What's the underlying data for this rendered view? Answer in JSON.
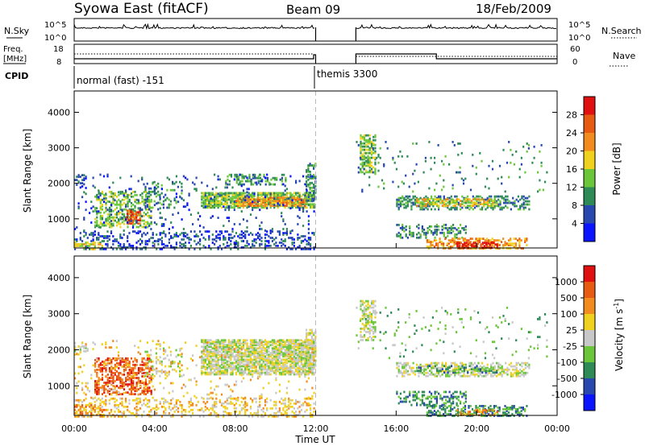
{
  "chart_data": {
    "type": "heatmap",
    "header": {
      "station": "Syowa East (fitACF)",
      "beam": "Beam 09",
      "date": "18/Feb/2009"
    },
    "top_panels": {
      "nsky_label": "N.Sky",
      "nsearch_label": "N.Search",
      "nsky_ticks": [
        "10^5",
        "10^0"
      ],
      "freq_label": "Freq.",
      "freq_unit": "[MHz]",
      "freq_ticks": [
        "18",
        "8"
      ],
      "nave_ticks": [
        "60",
        "0"
      ],
      "nave_label": "Nave",
      "cpid_label": "CPID",
      "modes": [
        {
          "label": "normal (fast) -151",
          "start_hour": 0,
          "end_hour": 12
        },
        {
          "label": "themis 3300",
          "start_hour": 12,
          "end_hour": 24
        }
      ],
      "data_gap_hours": [
        12,
        14
      ]
    },
    "x_axis": {
      "label": "Time UT",
      "range_hours": [
        0,
        24
      ],
      "ticks": [
        "00:00",
        "04:00",
        "08:00",
        "12:00",
        "16:00",
        "20:00",
        "00:00"
      ],
      "tick_hours": [
        0,
        4,
        8,
        12,
        16,
        20,
        24
      ]
    },
    "y_axis": {
      "label": "Slant Range [km]",
      "range_km": [
        180,
        4600
      ],
      "ticks": [
        1000,
        2000,
        3000,
        4000
      ],
      "tick_labels": [
        "1000",
        "2000",
        "3000",
        "4000"
      ]
    },
    "power": {
      "scale_label": "Power [dB]",
      "scale_ticks": [
        "28",
        "24",
        "20",
        "16",
        "12",
        "8",
        "4"
      ],
      "colors": [
        "#0a14ff",
        "#2848b0",
        "#2e8a56",
        "#6cc63a",
        "#f0d21e",
        "#f28c1e",
        "#e85a12",
        "#e01010"
      ],
      "regions": [
        {
          "t0": 0.0,
          "t1": 0.6,
          "r0": 1900,
          "r1": 2300,
          "level": 1,
          "density": 0.25
        },
        {
          "t0": 1.0,
          "t1": 3.8,
          "r0": 800,
          "r1": 1800,
          "level": 3,
          "density": 0.45
        },
        {
          "t0": 2.6,
          "t1": 3.3,
          "r0": 900,
          "r1": 1300,
          "level": 6,
          "density": 0.7
        },
        {
          "t0": 3.5,
          "t1": 5.3,
          "r0": 1300,
          "r1": 2100,
          "level": 2,
          "density": 0.2
        },
        {
          "t0": 6.3,
          "t1": 11.9,
          "r0": 1350,
          "r1": 1800,
          "level": 3,
          "density": 0.75
        },
        {
          "t0": 8.0,
          "t1": 11.5,
          "r0": 1400,
          "r1": 1650,
          "level": 5,
          "density": 0.6
        },
        {
          "t0": 7.5,
          "t1": 10.5,
          "r0": 2000,
          "r1": 2300,
          "level": 2,
          "density": 0.35
        },
        {
          "t0": 0.0,
          "t1": 11.9,
          "r0": 180,
          "r1": 700,
          "level": 1,
          "density": 0.3
        },
        {
          "t0": 0.0,
          "t1": 1.5,
          "r0": 180,
          "r1": 400,
          "level": 4,
          "density": 0.35
        },
        {
          "t0": 11.5,
          "t1": 12.0,
          "r0": 1500,
          "r1": 2600,
          "level": 2,
          "density": 0.5
        },
        {
          "t0": 14.2,
          "t1": 15.0,
          "r0": 2300,
          "r1": 3400,
          "level": 3,
          "density": 0.55
        },
        {
          "t0": 16.0,
          "t1": 22.6,
          "r0": 1300,
          "r1": 1700,
          "level": 2,
          "density": 0.45
        },
        {
          "t0": 17.0,
          "t1": 21.0,
          "r0": 1400,
          "r1": 1600,
          "level": 4,
          "density": 0.5
        },
        {
          "t0": 16.0,
          "t1": 19.5,
          "r0": 500,
          "r1": 900,
          "level": 2,
          "density": 0.35
        },
        {
          "t0": 17.5,
          "t1": 22.5,
          "r0": 200,
          "r1": 500,
          "level": 5,
          "density": 0.5
        },
        {
          "t0": 19.0,
          "t1": 21.0,
          "r0": 220,
          "r1": 380,
          "level": 7,
          "density": 0.6
        },
        {
          "t0": 14.0,
          "t1": 23.5,
          "r0": 1800,
          "r1": 3200,
          "level": 2,
          "density": 0.04
        },
        {
          "t0": 0.0,
          "t1": 11.9,
          "r0": 700,
          "r1": 2300,
          "level": 1,
          "density": 0.06
        }
      ]
    },
    "velocity": {
      "scale_label": "Velocity [m s",
      "scale_unit_sup": "-1",
      "scale_unit_end": "]",
      "scale_ticks": [
        "1000",
        "500",
        "100",
        "25",
        "-25",
        "-100",
        "-500",
        "-1000"
      ],
      "colors": [
        "#0a14ff",
        "#2848b0",
        "#2e8a56",
        "#6cc63a",
        "#c8c8c8",
        "#f0d21e",
        "#f28c1e",
        "#e85a12",
        "#e01010"
      ],
      "regions": [
        {
          "t0": 0.0,
          "t1": 0.6,
          "r0": 1900,
          "r1": 2300,
          "level": 4,
          "density": 0.3
        },
        {
          "t0": 1.0,
          "t1": 3.8,
          "r0": 800,
          "r1": 1800,
          "level": 7,
          "density": 0.5
        },
        {
          "t0": 3.5,
          "t1": 5.3,
          "r0": 1300,
          "r1": 2100,
          "level": 4,
          "density": 0.2
        },
        {
          "t0": 6.3,
          "t1": 11.9,
          "r0": 1350,
          "r1": 2300,
          "level": 4,
          "density": 0.75
        },
        {
          "t0": 0.0,
          "t1": 11.9,
          "r0": 180,
          "r1": 700,
          "level": 5,
          "density": 0.3
        },
        {
          "t0": 0.0,
          "t1": 1.5,
          "r0": 180,
          "r1": 500,
          "level": 6,
          "density": 0.35
        },
        {
          "t0": 11.5,
          "t1": 12.0,
          "r0": 1500,
          "r1": 2600,
          "level": 4,
          "density": 0.5
        },
        {
          "t0": 14.2,
          "t1": 15.0,
          "r0": 2300,
          "r1": 3400,
          "level": 4,
          "density": 0.55
        },
        {
          "t0": 16.0,
          "t1": 22.6,
          "r0": 1300,
          "r1": 1700,
          "level": 4,
          "density": 0.45
        },
        {
          "t0": 17.0,
          "t1": 21.0,
          "r0": 1400,
          "r1": 1600,
          "level": 2,
          "density": 0.3
        },
        {
          "t0": 16.0,
          "t1": 19.5,
          "r0": 500,
          "r1": 900,
          "level": 2,
          "density": 0.35
        },
        {
          "t0": 17.5,
          "t1": 22.5,
          "r0": 200,
          "r1": 500,
          "level": 2,
          "density": 0.5
        },
        {
          "t0": 19.0,
          "t1": 21.0,
          "r0": 220,
          "r1": 380,
          "level": 6,
          "density": 0.4
        },
        {
          "t0": 14.0,
          "t1": 23.5,
          "r0": 1800,
          "r1": 3200,
          "level": 3,
          "density": 0.04
        },
        {
          "t0": 0.0,
          "t1": 11.9,
          "r0": 700,
          "r1": 2300,
          "level": 5,
          "density": 0.06
        }
      ]
    }
  }
}
